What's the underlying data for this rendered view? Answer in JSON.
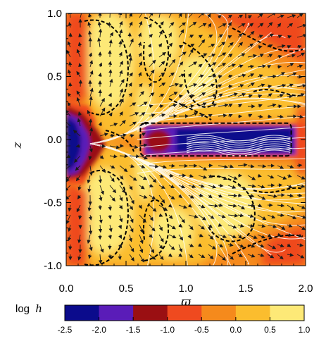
{
  "chart_data": {
    "type": "heatmap",
    "title": "",
    "xlabel": "ϖ",
    "ylabel": "z",
    "xlim": [
      0.0,
      2.0
    ],
    "ylim": [
      -1.0,
      1.0
    ],
    "xticks": [
      "0.0",
      "0.5",
      "1.0",
      "1.5",
      "2.0"
    ],
    "yticks": [
      "-1.0",
      "-0.5",
      "0.0",
      "0.5",
      "1.0"
    ],
    "xtick_values": [
      0.0,
      0.5,
      1.0,
      1.5,
      2.0
    ],
    "ytick_values": [
      -1.0,
      -0.5,
      0.0,
      0.5,
      1.0
    ],
    "colorbar": {
      "label": "log h",
      "label_main": "log",
      "label_var": "h",
      "levels": [
        -2.5,
        -2.0,
        -1.5,
        -1.0,
        -0.5,
        0.0,
        0.5,
        1.0
      ],
      "ticks": [
        "-2.5",
        "-2.0",
        "-1.5",
        "-1.0",
        "-0.5",
        "0.0",
        "0.5",
        "1.0"
      ],
      "colors": [
        "#0b0b8c",
        "#5a1cb8",
        "#9a0f12",
        "#ef4a1f",
        "#f58a1c",
        "#fbbd2e",
        "#fde977"
      ]
    },
    "overlays": {
      "streamlines": "white field lines",
      "vectors": "black arrows",
      "contours": "black dashed",
      "box": {
        "x": [
          0.62,
          1.88
        ],
        "z": [
          -0.13,
          0.13
        ]
      }
    }
  }
}
